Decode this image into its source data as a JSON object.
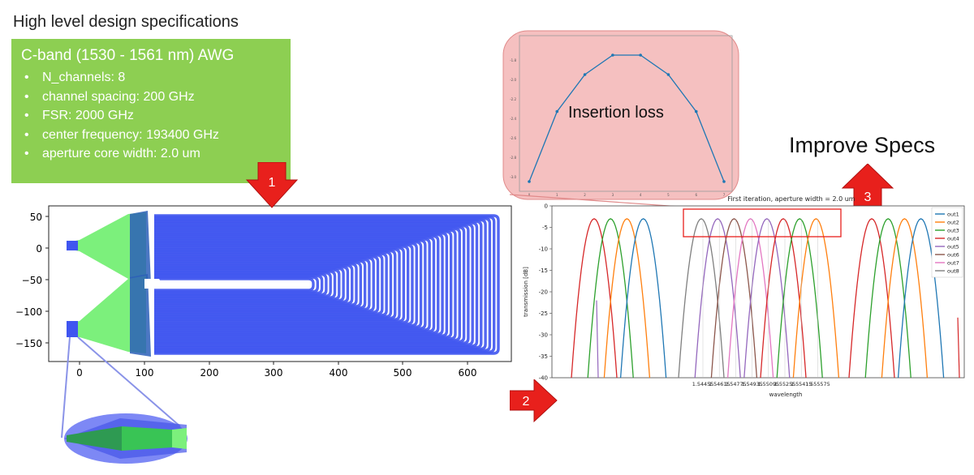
{
  "heading": "High level design specifications",
  "spec": {
    "title": "C-band (1530 - 1561 nm) AWG",
    "items": [
      "N_channels: 8",
      "channel spacing: 200 GHz",
      "FSR: 2000 GHz",
      "center frequency: 193400 GHz",
      "aperture core width: 2.0 um"
    ]
  },
  "steps": [
    "1",
    "2",
    "3"
  ],
  "improve_label": "Improve Specs",
  "insertion_loss_label": "Insertion loss",
  "colors": {
    "spec_box": "#8dcf52",
    "arrow": "#e8201c",
    "waveguide": "#3f55f0",
    "slab": "#7cf07c",
    "inset_bg": "#f5c0c0"
  },
  "layout_plot": {
    "x_ticks": [
      "0",
      "100",
      "200",
      "300",
      "400",
      "500",
      "600"
    ],
    "y_ticks": [
      "50",
      "0",
      "−50",
      "−100",
      "−150"
    ]
  },
  "chart_data": [
    {
      "type": "line",
      "title": "First iteration, aperture width = 2.0 um",
      "xlabel": "wavelength",
      "ylabel": "transmission [dB]",
      "ylim": [
        -40,
        0
      ],
      "yticks": [
        0,
        -5,
        -10,
        -15,
        -20,
        -25,
        -30,
        -35,
        -40
      ],
      "xtick_labels": [
        "1.54455",
        "1.54615",
        "1.54775",
        "1.54935",
        "1.55095",
        "1.55255",
        "1.55415",
        "1.555575"
      ],
      "legend": [
        "out1",
        "out2",
        "out3",
        "out4",
        "out5",
        "out6",
        "out7",
        "out8"
      ],
      "legend_position": "top-right",
      "series_colors": [
        "#1f77b4",
        "#ff7f0e",
        "#2ca02c",
        "#d62728",
        "#9467bd",
        "#8c564b",
        "#e377c2",
        "#7f7f7f"
      ],
      "peak_value_db": -3,
      "channel_peak_x": [
        3.5,
        8.5,
        2.5,
        7.5,
        4.5,
        1.5,
        6.5,
        0.5
      ],
      "annotation": "highlight box around channel peaks"
    },
    {
      "type": "line",
      "title": "Insertion loss",
      "x": [
        0,
        1,
        2,
        3,
        4,
        5,
        6,
        7
      ],
      "y": [
        -3.05,
        -2.33,
        -1.95,
        -1.75,
        -1.75,
        -1.95,
        -2.33,
        -3.05
      ],
      "xticks": [
        "0",
        "1",
        "2",
        "3",
        "4",
        "5",
        "6",
        "7"
      ],
      "yticks": [
        "-1.8",
        "-2.0",
        "-2.2",
        "-2.4",
        "-2.6",
        "-2.8",
        "-3.0"
      ],
      "color": "#1f77b4"
    }
  ]
}
